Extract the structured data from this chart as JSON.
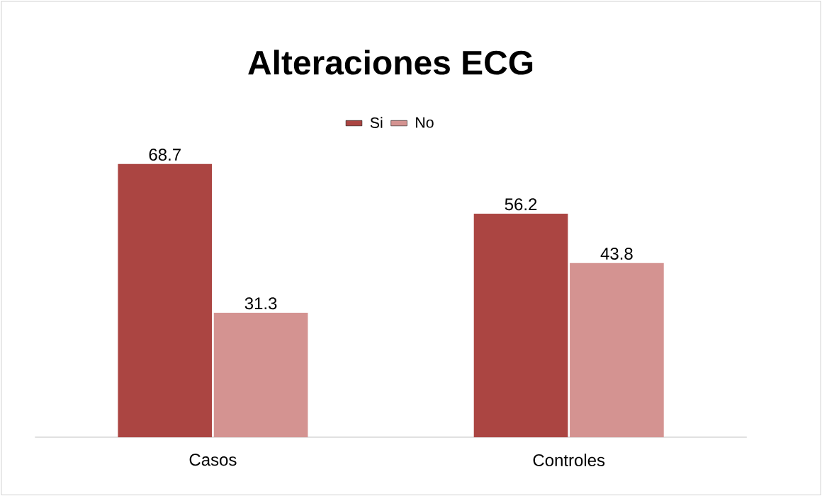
{
  "chart_data": {
    "type": "bar",
    "title": "Alteraciones ECG",
    "categories": [
      "Casos",
      "Controles"
    ],
    "series": [
      {
        "name": "Si",
        "color": "#ab4542",
        "values": [
          68.7,
          56.2
        ]
      },
      {
        "name": "No",
        "color": "#d49391",
        "values": [
          31.3,
          43.8
        ]
      }
    ],
    "data_labels": true,
    "legend": "top"
  }
}
